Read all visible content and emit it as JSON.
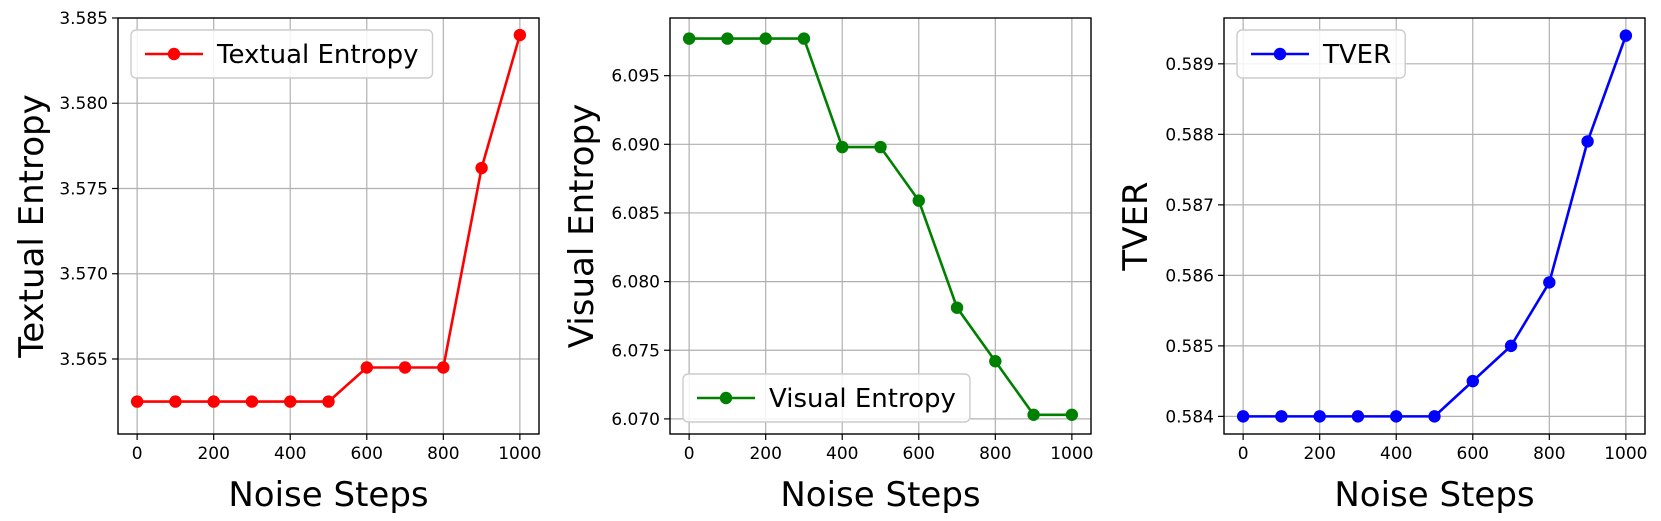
{
  "chart_data": [
    {
      "type": "line",
      "xlabel": "Noise Steps",
      "ylabel": "Textual Entropy",
      "x": [
        0,
        100,
        200,
        300,
        400,
        500,
        600,
        700,
        800,
        900,
        1000
      ],
      "series": [
        {
          "name": "Textual Entropy",
          "color": "#ff0000",
          "marker": "circle",
          "values": [
            3.5625,
            3.5625,
            3.5625,
            3.5625,
            3.5625,
            3.5625,
            3.5645,
            3.5645,
            3.5645,
            3.5762,
            3.584
          ]
        }
      ],
      "xlim": [
        -50,
        1050
      ],
      "ylim": [
        3.5606,
        3.585
      ],
      "xticks": [
        0,
        200,
        400,
        600,
        800,
        1000
      ],
      "xtick_labels": [
        "0",
        "200",
        "400",
        "600",
        "800",
        "1000"
      ],
      "yticks": [
        3.565,
        3.57,
        3.575,
        3.58,
        3.585
      ],
      "ytick_labels": [
        "3.565",
        "3.570",
        "3.575",
        "3.580",
        "3.585"
      ],
      "grid": true,
      "legend": "upper left"
    },
    {
      "type": "line",
      "xlabel": "Noise Steps",
      "ylabel": "Visual Entropy",
      "x": [
        0,
        100,
        200,
        300,
        400,
        500,
        600,
        700,
        800,
        900,
        1000
      ],
      "series": [
        {
          "name": "Visual Entropy",
          "color": "#008000",
          "marker": "circle",
          "values": [
            6.0977,
            6.0977,
            6.0977,
            6.0977,
            6.0898,
            6.0898,
            6.0859,
            6.0781,
            6.0742,
            6.0703,
            6.0703
          ]
        }
      ],
      "xlim": [
        -50,
        1050
      ],
      "ylim": [
        6.0689,
        6.0992
      ],
      "xticks": [
        0,
        200,
        400,
        600,
        800,
        1000
      ],
      "xtick_labels": [
        "0",
        "200",
        "400",
        "600",
        "800",
        "1000"
      ],
      "yticks": [
        6.07,
        6.075,
        6.08,
        6.085,
        6.09,
        6.095
      ],
      "ytick_labels": [
        "6.070",
        "6.075",
        "6.080",
        "6.085",
        "6.090",
        "6.095"
      ],
      "grid": true,
      "legend": "lower left"
    },
    {
      "type": "line",
      "xlabel": "Noise Steps",
      "ylabel": "TVER",
      "x": [
        0,
        100,
        200,
        300,
        400,
        500,
        600,
        700,
        800,
        900,
        1000
      ],
      "series": [
        {
          "name": "TVER",
          "color": "#0000ff",
          "marker": "circle",
          "values": [
            0.584,
            0.584,
            0.584,
            0.584,
            0.584,
            0.584,
            0.5845,
            0.585,
            0.5859,
            0.5879,
            0.5894
          ]
        }
      ],
      "xlim": [
        -50,
        1050
      ],
      "ylim": [
        0.58375,
        0.58965
      ],
      "xticks": [
        0,
        200,
        400,
        600,
        800,
        1000
      ],
      "xtick_labels": [
        "0",
        "200",
        "400",
        "600",
        "800",
        "1000"
      ],
      "yticks": [
        0.584,
        0.585,
        0.586,
        0.587,
        0.588,
        0.589
      ],
      "ytick_labels": [
        "0.584",
        "0.585",
        "0.586",
        "0.587",
        "0.588",
        "0.589"
      ],
      "grid": true,
      "legend": "upper left"
    }
  ]
}
